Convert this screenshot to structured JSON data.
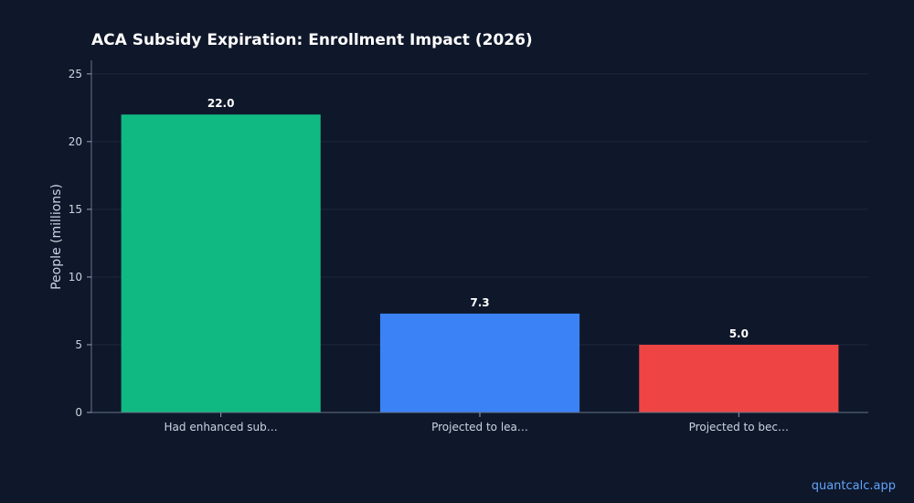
{
  "chart_data": {
    "type": "bar",
    "title": "ACA Subsidy Expiration: Enrollment Impact (2026)",
    "xlabel": "",
    "ylabel": "People (millions)",
    "categories": [
      "Had enhanced sub…",
      "Projected to lea…",
      "Projected to bec…"
    ],
    "values": [
      22.0,
      7.3,
      5.0
    ],
    "data_labels": [
      "22.0",
      "7.3",
      "5.0"
    ],
    "colors": [
      "#10b981",
      "#3b82f6",
      "#ef4444"
    ],
    "ylim": [
      0,
      26
    ],
    "yticks": [
      0,
      5,
      10,
      15,
      20,
      25
    ],
    "grid": true,
    "legend": "none"
  },
  "watermark": "quantcalc.app"
}
